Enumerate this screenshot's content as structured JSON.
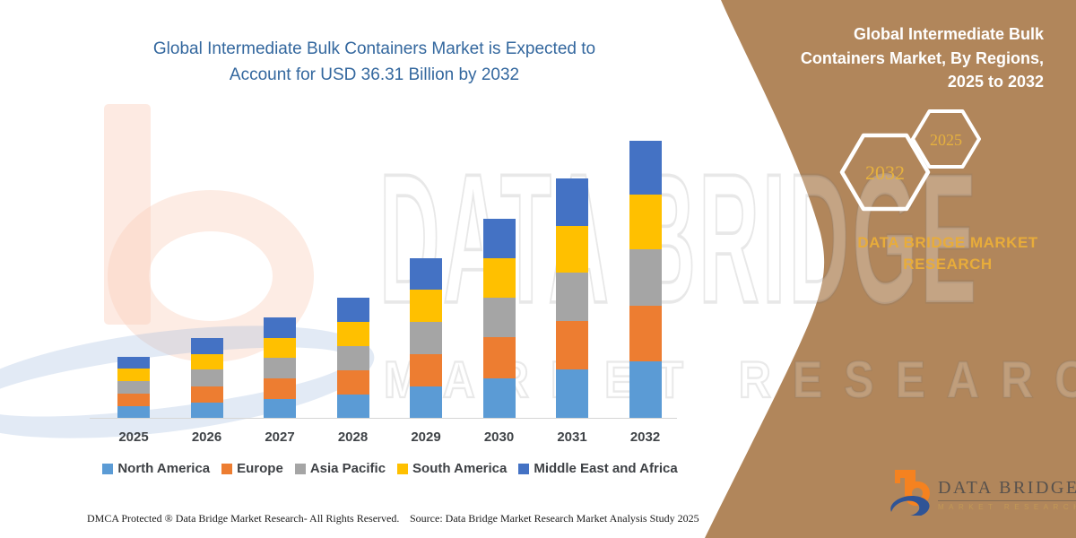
{
  "header": {
    "title_line1": "Global Intermediate Bulk Containers Market is Expected to",
    "title_line2": "Account for USD 36.31 Billion by 2032",
    "title_color": "#33679E"
  },
  "chart_data": {
    "type": "bar",
    "subtype": "stacked-vertical",
    "unit": "USD Billion",
    "categories": [
      "2025",
      "2026",
      "2027",
      "2028",
      "2029",
      "2030",
      "2031",
      "2032"
    ],
    "series": [
      {
        "name": "North America",
        "color": "#5B9BD5",
        "values": [
          1.66,
          2.14,
          2.64,
          3.2,
          4.25,
          5.32,
          6.42,
          7.45
        ]
      },
      {
        "name": "Europe",
        "color": "#ED7D31",
        "values": [
          1.64,
          2.13,
          2.66,
          3.18,
          4.18,
          5.38,
          6.38,
          7.3
        ]
      },
      {
        "name": "Asia Pacific",
        "color": "#A5A5A5",
        "values": [
          1.6,
          2.12,
          2.66,
          3.16,
          4.24,
          5.18,
          6.24,
          7.35
        ]
      },
      {
        "name": "South America",
        "color": "#FFC000",
        "values": [
          1.62,
          2.1,
          2.62,
          3.14,
          4.18,
          5.14,
          6.2,
          7.15
        ]
      },
      {
        "name": "Middle East and Africa",
        "color": "#4472C4",
        "values": [
          1.58,
          2.06,
          2.62,
          3.12,
          4.15,
          5.14,
          6.21,
          7.06
        ]
      }
    ],
    "totals": [
      8.1,
      10.55,
      13.2,
      15.8,
      21.0,
      26.16,
      31.45,
      36.31
    ],
    "final_value_label": "USD 36.31 Billion by 2032",
    "y_axis_visible": false,
    "gridlines": false,
    "legend_position": "bottom"
  },
  "panel": {
    "background": "#B1865B",
    "accent_gold": "#E6B13E",
    "title_lines": [
      "Global Intermediate Bulk",
      "Containers Market, By Regions,",
      "2025 to 2032"
    ],
    "hexagons": [
      {
        "label": "2032"
      },
      {
        "label": "2025"
      }
    ],
    "brand_line1": "DATA BRIDGE MARKET",
    "brand_line2": "RESEARCH"
  },
  "logo": {
    "wordmark": "DATA BRIDGE",
    "subtext": "MARKET RESEARCH"
  },
  "watermark": {
    "big_text": "DATA BRIDGE",
    "row_text": "MARKET RESEARCH"
  },
  "footer": {
    "left": "DMCA Protected ® Data Bridge Market Research-  All Rights Reserved.",
    "source": "Source: Data Bridge Market Research  Market Analysis Study 2025"
  }
}
